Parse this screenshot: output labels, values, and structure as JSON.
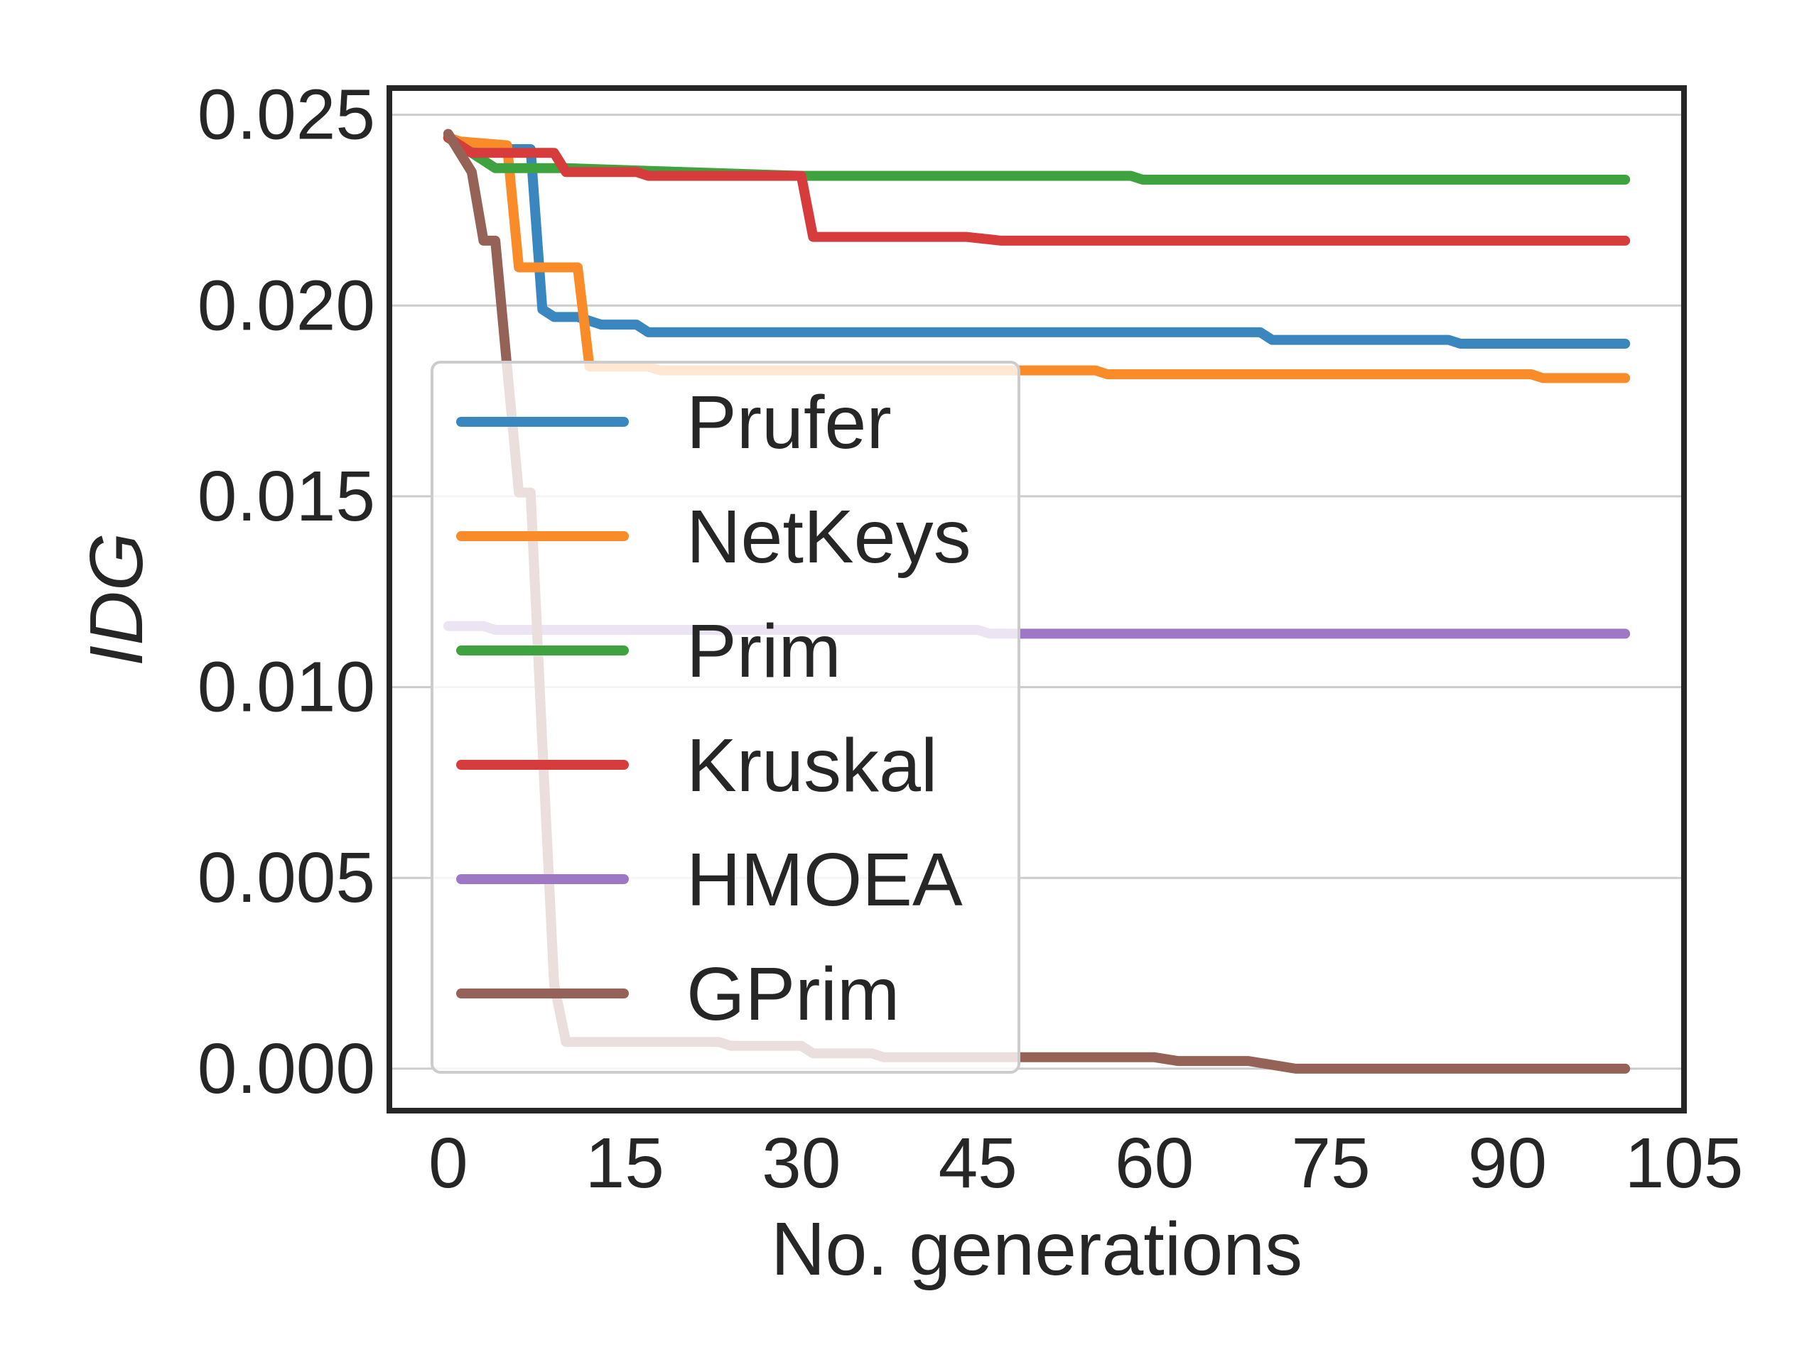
{
  "chart_data": {
    "type": "line",
    "title": "",
    "xlabel": "No. generations",
    "ylabel": "IDG",
    "xlim": [
      -5,
      105
    ],
    "ylim": [
      -0.0011,
      0.0257
    ],
    "xticks": [
      0,
      15,
      30,
      45,
      60,
      75,
      90,
      105
    ],
    "xtick_labels": [
      "0",
      "15",
      "30",
      "45",
      "60",
      "75",
      "90",
      "105"
    ],
    "yticks": [
      0.0,
      0.005,
      0.01,
      0.015,
      0.02,
      0.025
    ],
    "ytick_labels": [
      "0.000",
      "0.005",
      "0.010",
      "0.015",
      "0.020",
      "0.025"
    ],
    "grid": "horizontal",
    "legend_position": "left-center",
    "series": [
      {
        "name": "Prufer",
        "color": "#3a86bf",
        "points": [
          [
            0,
            0.0244
          ],
          [
            2,
            0.0242
          ],
          [
            4,
            0.0242
          ],
          [
            5,
            0.0241
          ],
          [
            7,
            0.0241
          ],
          [
            8,
            0.0199
          ],
          [
            9,
            0.0197
          ],
          [
            11,
            0.0197
          ],
          [
            13,
            0.0195
          ],
          [
            16,
            0.0195
          ],
          [
            17,
            0.0193
          ],
          [
            30,
            0.0193
          ],
          [
            69,
            0.0193
          ],
          [
            70,
            0.0191
          ],
          [
            85,
            0.0191
          ],
          [
            86,
            0.019
          ],
          [
            100,
            0.019
          ]
        ]
      },
      {
        "name": "NetKeys",
        "color": "#f98b29",
        "points": [
          [
            0,
            0.0244
          ],
          [
            1,
            0.0243
          ],
          [
            5,
            0.0242
          ],
          [
            6,
            0.021
          ],
          [
            11,
            0.021
          ],
          [
            12,
            0.0184
          ],
          [
            17,
            0.0184
          ],
          [
            18,
            0.0183
          ],
          [
            45,
            0.0183
          ],
          [
            55,
            0.0183
          ],
          [
            56,
            0.0182
          ],
          [
            92,
            0.0182
          ],
          [
            93,
            0.0181
          ],
          [
            100,
            0.0181
          ]
        ]
      },
      {
        "name": "Prim",
        "color": "#3ea33e",
        "points": [
          [
            0,
            0.0244
          ],
          [
            2,
            0.024
          ],
          [
            4,
            0.0236
          ],
          [
            10,
            0.0236
          ],
          [
            30,
            0.0234
          ],
          [
            58,
            0.0234
          ],
          [
            59,
            0.0233
          ],
          [
            100,
            0.0233
          ]
        ]
      },
      {
        "name": "Kruskal",
        "color": "#d73c3c",
        "points": [
          [
            0,
            0.0244
          ],
          [
            2,
            0.024
          ],
          [
            9,
            0.024
          ],
          [
            10,
            0.0235
          ],
          [
            16,
            0.0235
          ],
          [
            17,
            0.0234
          ],
          [
            30,
            0.0234
          ],
          [
            31,
            0.0218
          ],
          [
            44,
            0.0218
          ],
          [
            47,
            0.0217
          ],
          [
            53,
            0.0217
          ],
          [
            54,
            0.0217
          ],
          [
            100,
            0.0217
          ]
        ]
      },
      {
        "name": "HMOEA",
        "color": "#9e78c4",
        "points": [
          [
            0,
            0.0116
          ],
          [
            3,
            0.0116
          ],
          [
            4,
            0.0115
          ],
          [
            45,
            0.0115
          ],
          [
            46,
            0.0114
          ],
          [
            100,
            0.0114
          ]
        ]
      },
      {
        "name": "GPrim",
        "color": "#956257",
        "points": [
          [
            0,
            0.0245
          ],
          [
            2,
            0.0235
          ],
          [
            3,
            0.0217
          ],
          [
            4,
            0.0217
          ],
          [
            5,
            0.0184
          ],
          [
            6,
            0.0151
          ],
          [
            7,
            0.0151
          ],
          [
            8,
            0.0085
          ],
          [
            9,
            0.0022
          ],
          [
            10,
            0.0007
          ],
          [
            23,
            0.0007
          ],
          [
            24,
            0.0006
          ],
          [
            30,
            0.0006
          ],
          [
            31,
            0.0004
          ],
          [
            36,
            0.0004
          ],
          [
            37,
            0.0003
          ],
          [
            60,
            0.0003
          ],
          [
            62,
            0.0002
          ],
          [
            68,
            0.0002
          ],
          [
            70,
            0.0001
          ],
          [
            72,
            0.0
          ],
          [
            100,
            0.0
          ]
        ]
      }
    ]
  }
}
